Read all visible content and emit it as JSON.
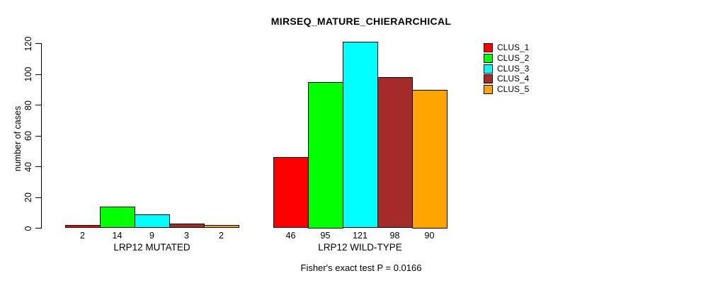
{
  "chart_data": {
    "type": "bar",
    "title": "MIRSEQ_MATURE_CHIERARCHICAL",
    "xlabel": "",
    "ylabel": "number of cases",
    "ylim": [
      0,
      120
    ],
    "yticks": [
      0,
      20,
      40,
      60,
      80,
      100,
      120
    ],
    "grid": false,
    "legend_position": "top-right",
    "categories": [
      "LRP12 MUTATED",
      "LRP12 WILD-TYPE"
    ],
    "series": [
      {
        "name": "CLUS_1",
        "color": "#FF0000",
        "values": [
          2,
          46
        ]
      },
      {
        "name": "CLUS_2",
        "color": "#00FF00",
        "values": [
          14,
          95
        ]
      },
      {
        "name": "CLUS_3",
        "color": "#00FFFF",
        "values": [
          9,
          121
        ]
      },
      {
        "name": "CLUS_4",
        "color": "#A52A2A",
        "values": [
          3,
          98
        ]
      },
      {
        "name": "CLUS_5",
        "color": "#FFA500",
        "values": [
          2,
          90
        ]
      }
    ],
    "bar_value_labels": true,
    "annotation": "Fisher's exact test P = 0.0166"
  },
  "colors": {
    "background": "#FFFFFF",
    "axis": "#000000",
    "text": "#000000"
  }
}
